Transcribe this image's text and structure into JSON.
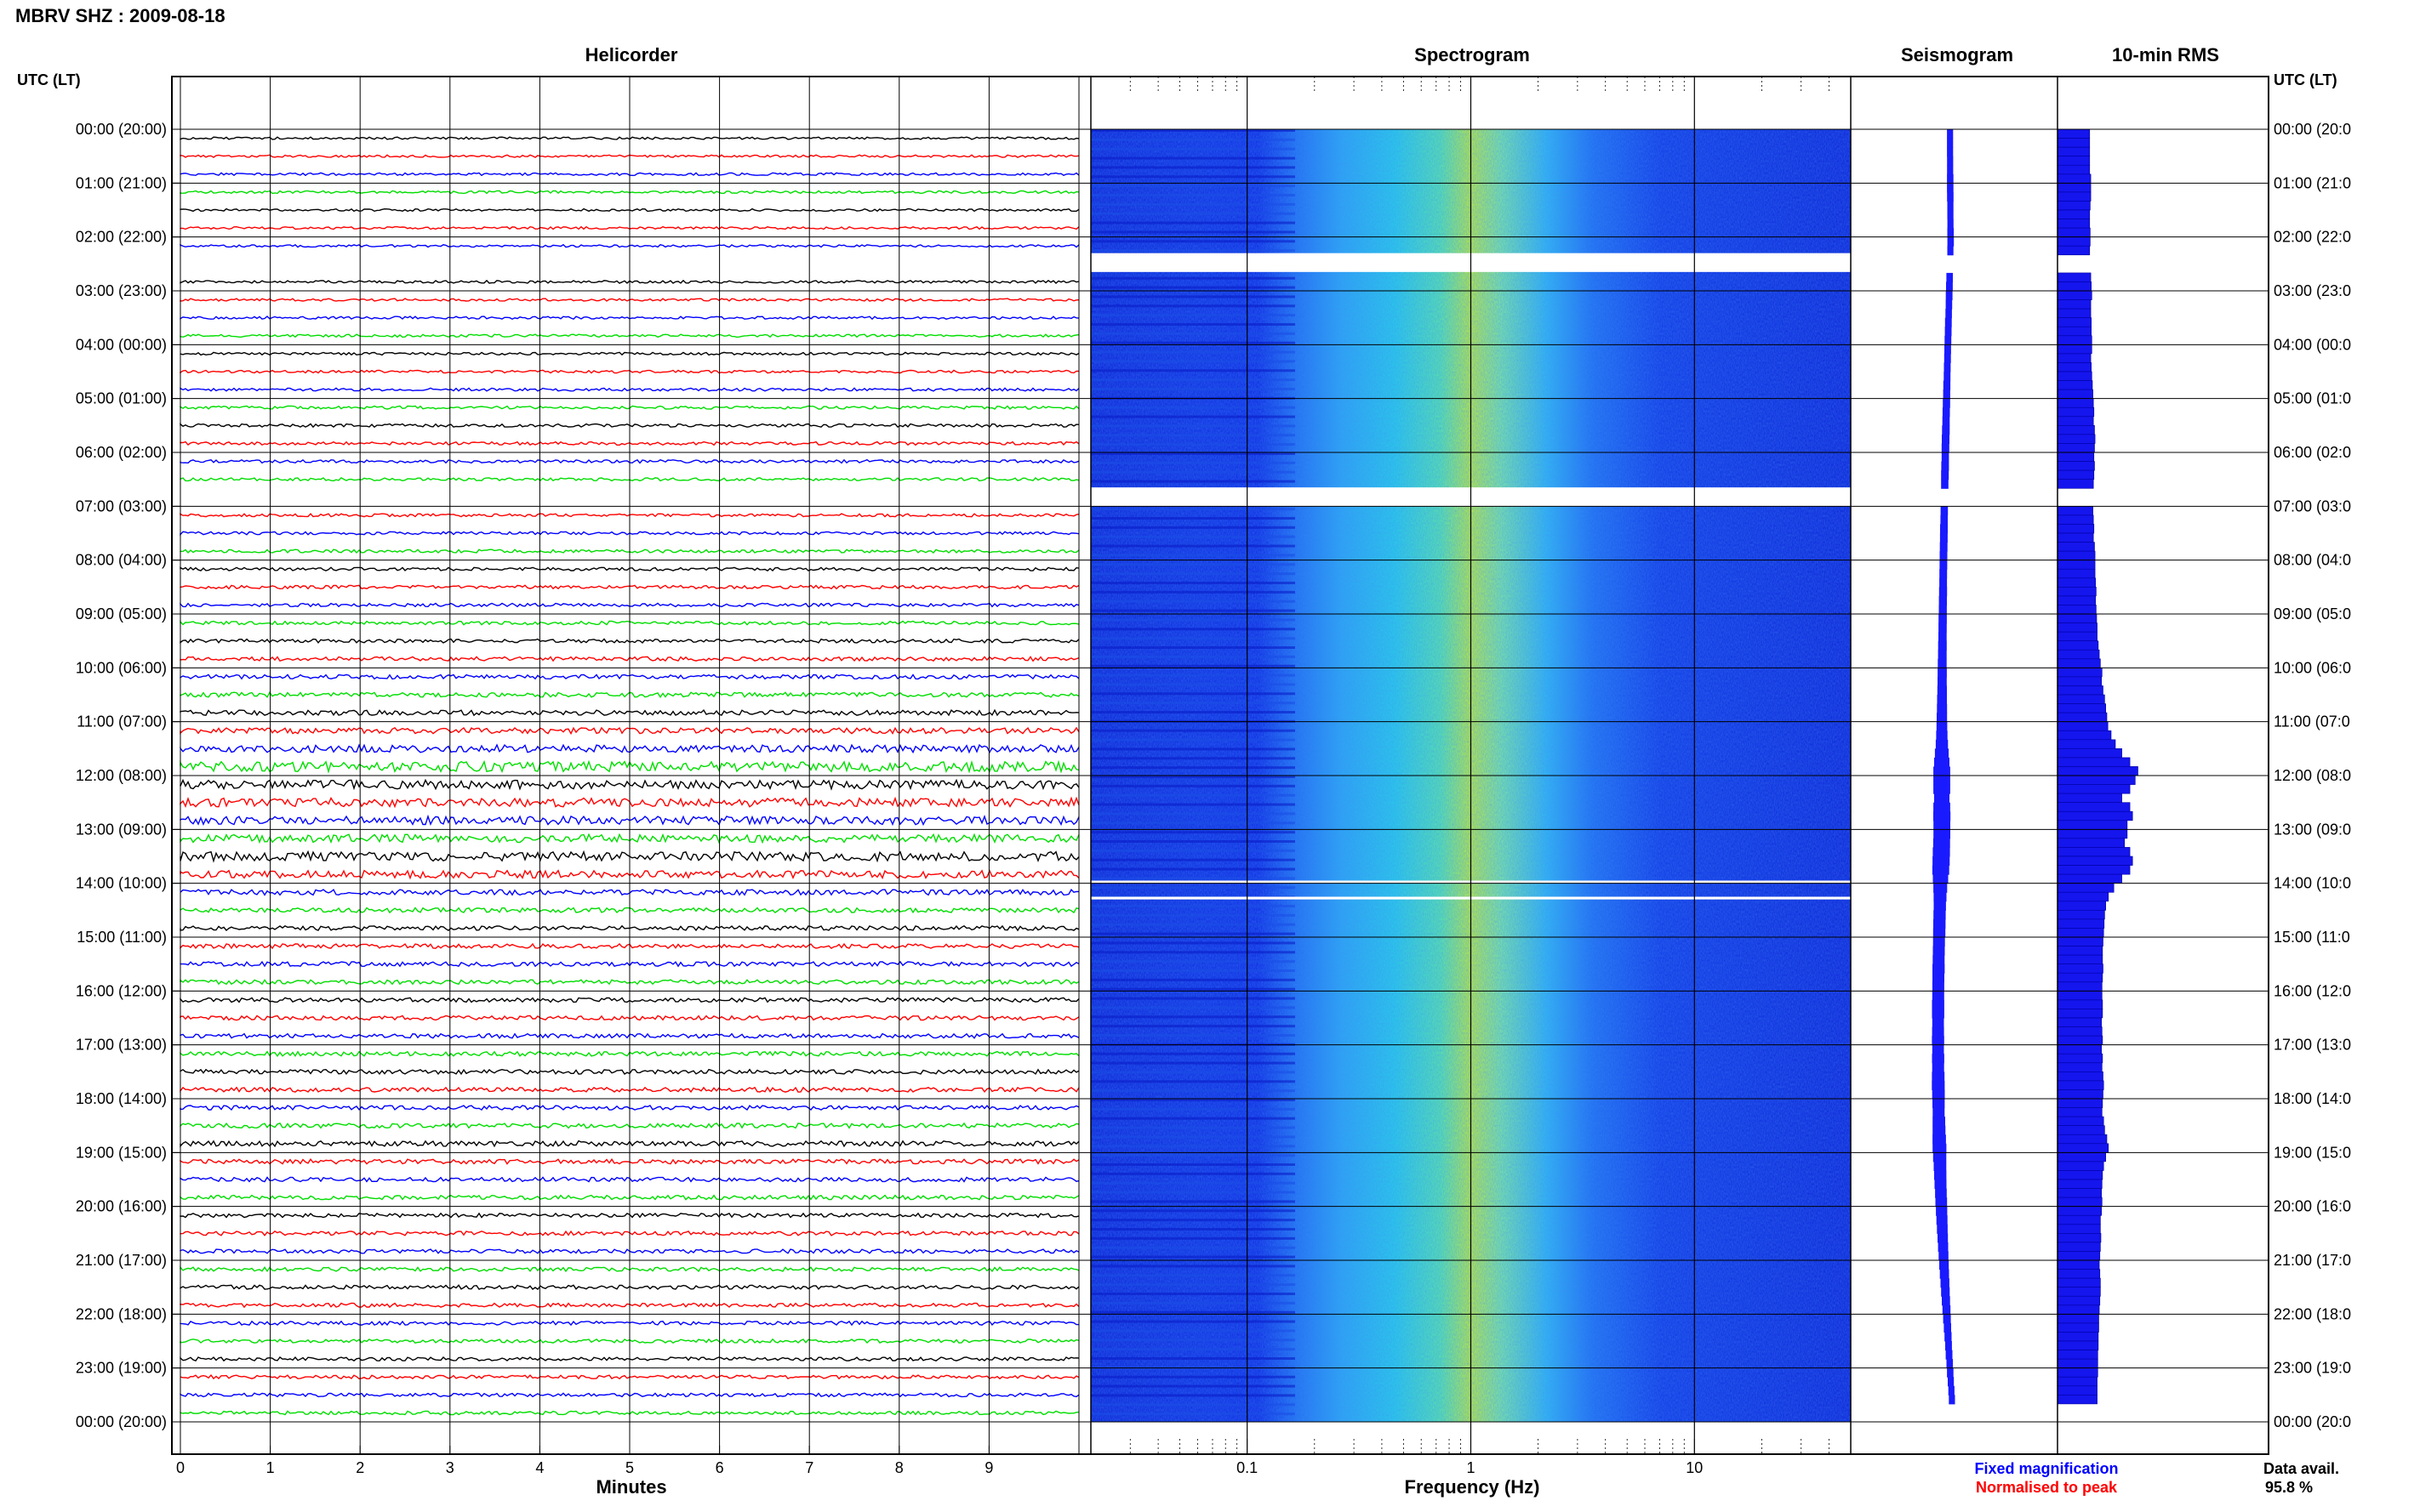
{
  "title": "MBRV SHZ : 2009-08-18",
  "panels": {
    "helicorder": "Helicorder",
    "spectrogram": "Spectrogram",
    "seismogram": "Seismogram",
    "rms": "10-min RMS"
  },
  "left_axis_label": "UTC (LT)",
  "right_axis_label": "UTC (LT)",
  "x_label_minutes": "Minutes",
  "x_label_frequency": "Frequency (Hz)",
  "legend": {
    "fixed": "Fixed magnification",
    "normalised": "Normalised to peak",
    "fixed_color": "#0000ff",
    "normalised_color": "#ff0000"
  },
  "data_avail": {
    "label": "Data avail.",
    "value": "95.8 %"
  },
  "colors": {
    "trace_cycle": [
      "#000000",
      "#ff0000",
      "#0000ff",
      "#00dd00"
    ],
    "spectrogram_low": "#0a1fd6",
    "spectrogram_high": "#e8f000"
  },
  "chart_data": {
    "type": "heatmap",
    "time_ticks": [
      "00:00 (20:00)",
      "01:00 (21:00)",
      "02:00 (22:00)",
      "03:00 (23:00)",
      "04:00 (00:00)",
      "05:00 (01:00)",
      "06:00 (02:00)",
      "07:00 (03:00)",
      "08:00 (04:00)",
      "09:00 (05:00)",
      "10:00 (06:00)",
      "11:00 (07:00)",
      "12:00 (08:00)",
      "13:00 (09:00)",
      "14:00 (10:00)",
      "15:00 (11:00)",
      "16:00 (12:00)",
      "17:00 (13:00)",
      "18:00 (14:00)",
      "19:00 (15:00)",
      "20:00 (16:00)",
      "21:00 (17:00)",
      "22:00 (18:00)",
      "23:00 (19:00)",
      "00:00 (20:00)"
    ],
    "right_time_ticks": [
      "00:00 (20:0",
      "01:00 (21:0",
      "02:00 (22:0",
      "03:00 (23:0",
      "04:00 (00:0",
      "05:00 (01:0",
      "06:00 (02:0",
      "07:00 (03:0",
      "08:00 (04:0",
      "09:00 (05:0",
      "10:00 (06:0",
      "11:00 (07:0",
      "12:00 (08:0",
      "13:00 (09:0",
      "14:00 (10:0",
      "15:00 (11:0",
      "16:00 (12:0",
      "17:00 (13:0",
      "18:00 (14:0",
      "19:00 (15:0",
      "20:00 (16:0",
      "21:00 (17:0",
      "22:00 (18:0",
      "23:00 (19:0",
      "00:00 (20:0"
    ],
    "minutes_ticks": [
      0,
      1,
      2,
      3,
      4,
      5,
      6,
      7,
      8,
      9
    ],
    "minutes_range": [
      0,
      10
    ],
    "frequency_ticks": [
      0.1,
      1,
      10
    ],
    "frequency_range": [
      0.02,
      50
    ],
    "frequency_scale": "log",
    "data_gaps_hours": [
      [
        2.3,
        2.65
      ],
      [
        6.65,
        7.0
      ],
      [
        13.95,
        14.0
      ],
      [
        14.25,
        14.3
      ]
    ],
    "rms_10min": [
      0.6,
      0.6,
      0.6,
      0.6,
      0.6,
      0.62,
      0.62,
      0.62,
      0.61,
      0.6,
      0.6,
      0.61,
      0.61,
      0.6,
      0.62,
      0.63,
      0.62,
      0.63,
      0.64,
      0.62,
      0.62,
      0.63,
      0.63,
      0.64,
      0.64,
      0.62,
      0.63,
      0.64,
      0.65,
      0.66,
      0.67,
      0.68,
      0.67,
      0.69,
      0.7,
      0.69,
      0.68,
      0.69,
      0.68,
      0.67,
      0.66,
      0.66,
      0.66,
      0.67,
      0.68,
      0.67,
      0.69,
      0.7,
      0.7,
      0.7,
      0.71,
      0.72,
      0.71,
      0.72,
      0.73,
      0.74,
      0.74,
      0.76,
      0.78,
      0.8,
      0.83,
      0.82,
      0.85,
      0.88,
      0.9,
      0.92,
      0.94,
      1.0,
      1.08,
      1.2,
      1.35,
      1.5,
      1.45,
      1.35,
      1.2,
      1.35,
      1.4,
      1.3,
      1.3,
      1.25,
      1.35,
      1.4,
      1.35,
      1.2,
      1.05,
      0.95,
      0.9,
      0.88,
      0.87,
      0.86,
      0.85,
      0.84,
      0.84,
      0.85,
      0.84,
      0.83,
      0.83,
      0.84,
      0.84,
      0.82,
      0.83,
      0.84,
      0.82,
      0.84,
      0.83,
      0.85,
      0.86,
      0.85,
      0.84,
      0.83,
      0.86,
      0.88,
      0.92,
      0.95,
      0.9,
      0.86,
      0.84,
      0.83,
      0.82,
      0.83,
      0.82,
      0.8,
      0.8,
      0.81,
      0.8,
      0.79,
      0.78,
      0.79,
      0.8,
      0.8,
      0.79,
      0.78,
      0.77,
      0.77,
      0.76,
      0.76,
      0.75,
      0.75,
      0.75,
      0.74,
      0.74,
      0.74
    ],
    "seismogram_amplitude_10min": [
      0.2,
      0.2,
      0.2,
      0.2,
      0.2,
      0.21,
      0.21,
      0.21,
      0.2,
      0.2,
      0.2,
      0.21,
      0.21,
      0.2,
      0.2,
      0.21,
      0.21,
      0.22,
      0.22,
      0.21,
      0.21,
      0.22,
      0.22,
      0.22,
      0.22,
      0.22,
      0.22,
      0.22,
      0.23,
      0.23,
      0.24,
      0.24,
      0.24,
      0.25,
      0.25,
      0.25,
      0.24,
      0.25,
      0.25,
      0.24,
      0.24,
      0.24,
      0.24,
      0.24,
      0.25,
      0.25,
      0.25,
      0.25,
      0.25,
      0.25,
      0.25,
      0.26,
      0.26,
      0.26,
      0.27,
      0.27,
      0.27,
      0.28,
      0.28,
      0.29,
      0.3,
      0.3,
      0.31,
      0.32,
      0.33,
      0.34,
      0.35,
      0.37,
      0.4,
      0.45,
      0.5,
      0.55,
      0.55,
      0.55,
      0.5,
      0.55,
      0.56,
      0.55,
      0.55,
      0.55,
      0.56,
      0.56,
      0.55,
      0.5,
      0.45,
      0.42,
      0.4,
      0.4,
      0.4,
      0.4,
      0.39,
      0.39,
      0.39,
      0.4,
      0.39,
      0.39,
      0.39,
      0.4,
      0.4,
      0.38,
      0.39,
      0.4,
      0.38,
      0.4,
      0.39,
      0.41,
      0.42,
      0.41,
      0.4,
      0.39,
      0.41,
      0.42,
      0.44,
      0.45,
      0.43,
      0.41,
      0.4,
      0.39,
      0.38,
      0.38,
      0.37,
      0.36,
      0.35,
      0.34,
      0.33,
      0.32,
      0.31,
      0.3,
      0.29,
      0.28,
      0.27,
      0.26,
      0.25,
      0.24,
      0.23,
      0.22,
      0.22,
      0.21,
      0.21,
      0.2,
      0.2,
      0.2
    ]
  }
}
